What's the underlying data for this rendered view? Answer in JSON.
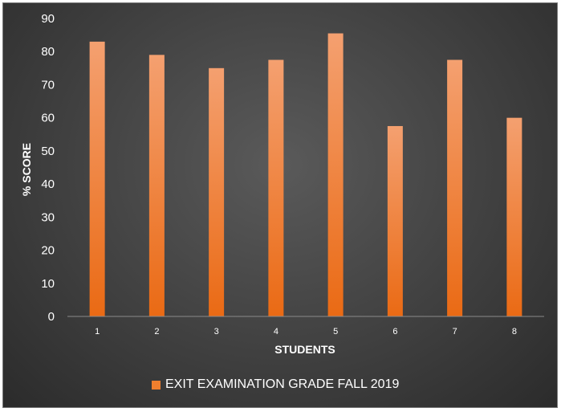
{
  "chart_data": {
    "type": "bar",
    "categories": [
      "1",
      "2",
      "3",
      "4",
      "5",
      "6",
      "7",
      "8"
    ],
    "series": [
      {
        "name": "EXIT EXAMINATION GRADE FALL 2019",
        "values": [
          83,
          79,
          75,
          77.5,
          85.5,
          57.5,
          77.5,
          60
        ]
      }
    ],
    "xlabel": "STUDENTS",
    "ylabel": "% SCORE",
    "ylim": [
      0,
      90
    ],
    "yticks": [
      "0",
      "10",
      "20",
      "30",
      "40",
      "50",
      "60",
      "70",
      "80",
      "90"
    ],
    "grid": false,
    "legend": "bottom",
    "colors": {
      "bar_top": "#f4a070",
      "bar_bottom": "#ea6a14",
      "background": "#404040",
      "text": "#ffffff"
    }
  }
}
